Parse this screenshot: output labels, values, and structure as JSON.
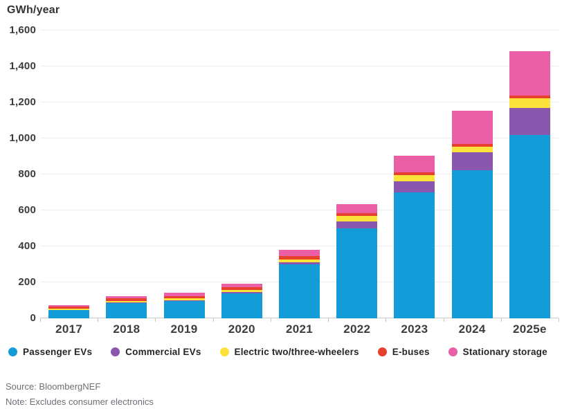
{
  "chart_data": {
    "type": "bar",
    "stacked": true,
    "axis_title": "GWh/year",
    "categories": [
      "2017",
      "2018",
      "2019",
      "2020",
      "2021",
      "2022",
      "2023",
      "2024",
      "2025e"
    ],
    "series": [
      {
        "name": "Passenger EVs",
        "color": "#149cd9",
        "values": [
          45,
          85,
          98,
          140,
          300,
          500,
          700,
          825,
          1020
        ]
      },
      {
        "name": "Commercial EVs",
        "color": "#8a57ae",
        "values": [
          2,
          3,
          3,
          5,
          13,
          38,
          60,
          100,
          150
        ]
      },
      {
        "name": "Electric two/three-wheelers",
        "color": "#fbe33b",
        "values": [
          6,
          8,
          9,
          12,
          15,
          32,
          35,
          30,
          55
        ]
      },
      {
        "name": "E-buses",
        "color": "#e8402f",
        "values": [
          14,
          14,
          15,
          16,
          20,
          13,
          15,
          15,
          15
        ]
      },
      {
        "name": "Stationary storage",
        "color": "#ea5fa5",
        "values": [
          8,
          15,
          18,
          20,
          32,
          52,
          95,
          185,
          245
        ]
      }
    ],
    "totals": [
      75,
      125,
      143,
      193,
      380,
      635,
      905,
      1155,
      1485
    ],
    "ylim": [
      0,
      1600
    ],
    "ytick_step": 200,
    "ytick_labels": [
      "0",
      "200",
      "400",
      "600",
      "800",
      "1,000",
      "1,200",
      "1,400",
      "1,600"
    ],
    "grid": true,
    "legend_position": "bottom"
  },
  "footer": {
    "source": "Source: BloombergNEF",
    "note": "Note: Excludes consumer electronics"
  }
}
